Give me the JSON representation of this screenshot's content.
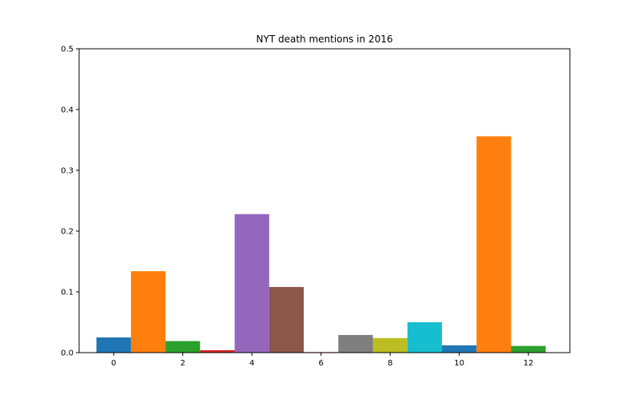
{
  "chart_data": {
    "type": "bar",
    "title": "NYT death mentions in 2016",
    "xlabel": "",
    "ylabel": "",
    "x": [
      0,
      1,
      2,
      3,
      4,
      5,
      6,
      7,
      8,
      9,
      10,
      11,
      12
    ],
    "values": [
      0.025,
      0.134,
      0.019,
      0.004,
      0.228,
      0.108,
      0.001,
      0.029,
      0.024,
      0.05,
      0.012,
      0.356,
      0.011
    ],
    "colors": [
      "#1f77b4",
      "#ff7f0e",
      "#2ca02c",
      "#d62728",
      "#9467bd",
      "#8c564b",
      "#e377c2",
      "#7f7f7f",
      "#bcbd22",
      "#17becf",
      "#1f77b4",
      "#ff7f0e",
      "#2ca02c"
    ],
    "xlim": [
      -1,
      13.2
    ],
    "ylim": [
      0,
      0.5
    ],
    "xticks": [
      0,
      2,
      4,
      6,
      8,
      10,
      12
    ],
    "xtick_labels": [
      "0",
      "2",
      "4",
      "6",
      "8",
      "10",
      "12"
    ],
    "yticks": [
      0.0,
      0.1,
      0.2,
      0.3,
      0.4,
      0.5
    ],
    "ytick_labels": [
      "0.0",
      "0.1",
      "0.2",
      "0.3",
      "0.4",
      "0.5"
    ],
    "bar_width": 1.0,
    "grid": false,
    "legend": "none"
  }
}
